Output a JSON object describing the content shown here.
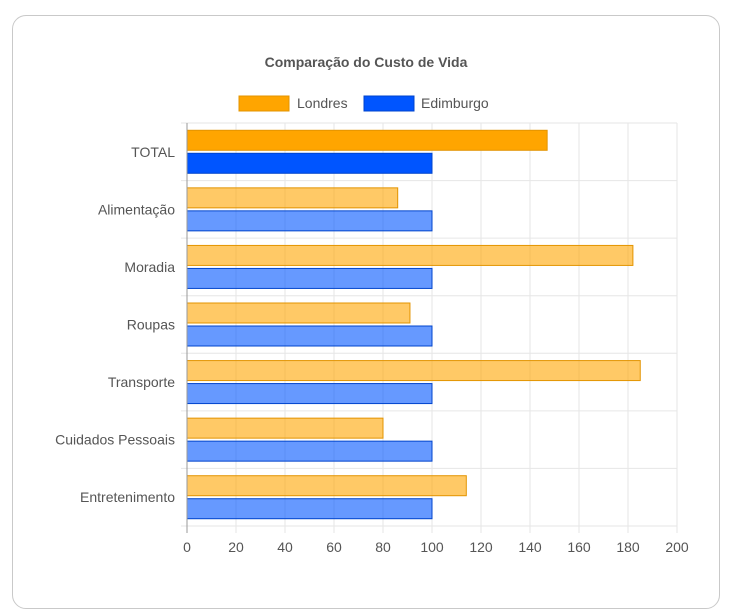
{
  "chart_data": {
    "type": "bar",
    "orientation": "horizontal",
    "title": "Comparação do Custo de Vida",
    "xlabel": "",
    "ylabel": "",
    "xlim": [
      0,
      200
    ],
    "xticks": [
      "0",
      "20",
      "40",
      "60",
      "80",
      "100",
      "120",
      "140",
      "160",
      "180",
      "200"
    ],
    "grid": true,
    "legend_position": "top",
    "categories": [
      "TOTAL",
      "Alimentação",
      "Moradia",
      "Roupas",
      "Transporte",
      "Cuidados Pessoais",
      "Entretenimento"
    ],
    "series": [
      {
        "name": "Londres",
        "color": "#FFA500",
        "values": [
          147,
          86,
          182,
          91,
          185,
          80,
          114
        ]
      },
      {
        "name": "Edimburgo",
        "color": "#0055FF",
        "values": [
          100,
          100,
          100,
          100,
          100,
          100,
          100
        ]
      }
    ]
  }
}
